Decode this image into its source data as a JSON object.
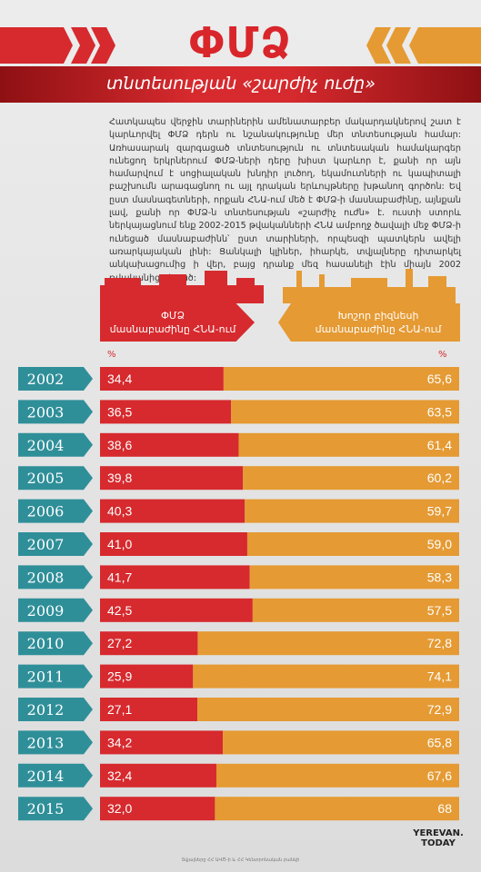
{
  "header": {
    "title": "ՓՄՁ",
    "subtitle": "տնտեսության «շարժիչ ուժը»"
  },
  "intro": "Հատկապես վերջին տարիներին ամենատարբեր մակարդակներով շատ է կարևորվել ՓՄՁ դերն ու նշանակությունը մեր տնտեսության համար: Առհասարակ զարգացած տնտեսություն ու տնտեսական համակարգեր ունեցող երկրներում ՓՄՁ-ների դերը խիստ կարևոր է, քանի որ այն համարվում է սոցիալական խնդիր լուծող, եկամուտների ու կապիտալի բաշխումն արագացնող ու այլ դրական երևույթները խթանող գործոն: Եվ ըստ մասնագետների, որքան ՀՆԱ-ում մեծ է ՓՄՁ-ի մասնաբաժինը, այնքան լավ, քանի որ ՓՄՁ-ն տնտեսության «շարժիչ ուժն» է. ուստի ստորև ներկայացնում ենք 2002-2015 թվականների ՀՆԱ ամբողջ ծավալի մեջ ՓՄՁ-ի ունեցած մասնաբաժինն՝ ըստ տարիների, որպեսզի պատկերն ավելի առարկայական լինի: Ցանկալի կլիներ, իհարկե, տվյալները դիտարկել անկախացումից ի վեր, բայց դրանք մեզ հասանելի էին միայն 2002 թվականից սկսած:",
  "legend": {
    "left_line1": "ՓՄՁ",
    "left_line2": "մասնաբաժինը ՀՆԱ-ում",
    "right_line1": "Խոշոր բիզնեսի",
    "right_line2": "մասնաբաժինը ՀՆԱ-ում",
    "pct_left": "%",
    "pct_right": "%"
  },
  "colors": {
    "red": "#d62a2e",
    "orange": "#e59a33",
    "teal": "#2f8f99"
  },
  "footer": {
    "logo_line1": "YEREVAN.",
    "logo_line2": "TODAY",
    "note": "Տվյալները ՀՀ ԱՎԾ-ի և ՀՀ Կենտրոնական բանկի"
  },
  "chart_data": {
    "type": "bar",
    "stacked": true,
    "orientation": "horizontal",
    "categories": [
      "2002",
      "2003",
      "2004",
      "2005",
      "2006",
      "2007",
      "2008",
      "2009",
      "2010",
      "2011",
      "2012",
      "2013",
      "2014",
      "2015"
    ],
    "series": [
      {
        "name": "ՓՄՁ մասնաբաժինը ՀՆԱ-ում",
        "values": [
          34.4,
          36.5,
          38.6,
          39.8,
          40.3,
          41.0,
          41.7,
          42.5,
          27.2,
          25.9,
          27.1,
          34.2,
          32.4,
          32.0
        ],
        "labels": [
          "34,4",
          "36,5",
          "38,6",
          "39,8",
          "40,3",
          "41,0",
          "41,7",
          "42,5",
          "27,2",
          "25,9",
          "27,1",
          "34,2",
          "32,4",
          "32,0"
        ]
      },
      {
        "name": "Խոշոր բիզնեսի մասնաբաժինը ՀՆԱ-ում",
        "values": [
          65.6,
          63.5,
          61.4,
          60.2,
          59.7,
          59.0,
          58.3,
          57.5,
          72.8,
          74.1,
          72.9,
          65.8,
          67.6,
          68
        ],
        "labels": [
          "65,6",
          "63,5",
          "61,4",
          "60,2",
          "59,7",
          "59,0",
          "58,3",
          "57,5",
          "72,8",
          "74,1",
          "72,9",
          "65,8",
          "67,6",
          "68"
        ]
      }
    ],
    "xlim": [
      0,
      100
    ]
  }
}
